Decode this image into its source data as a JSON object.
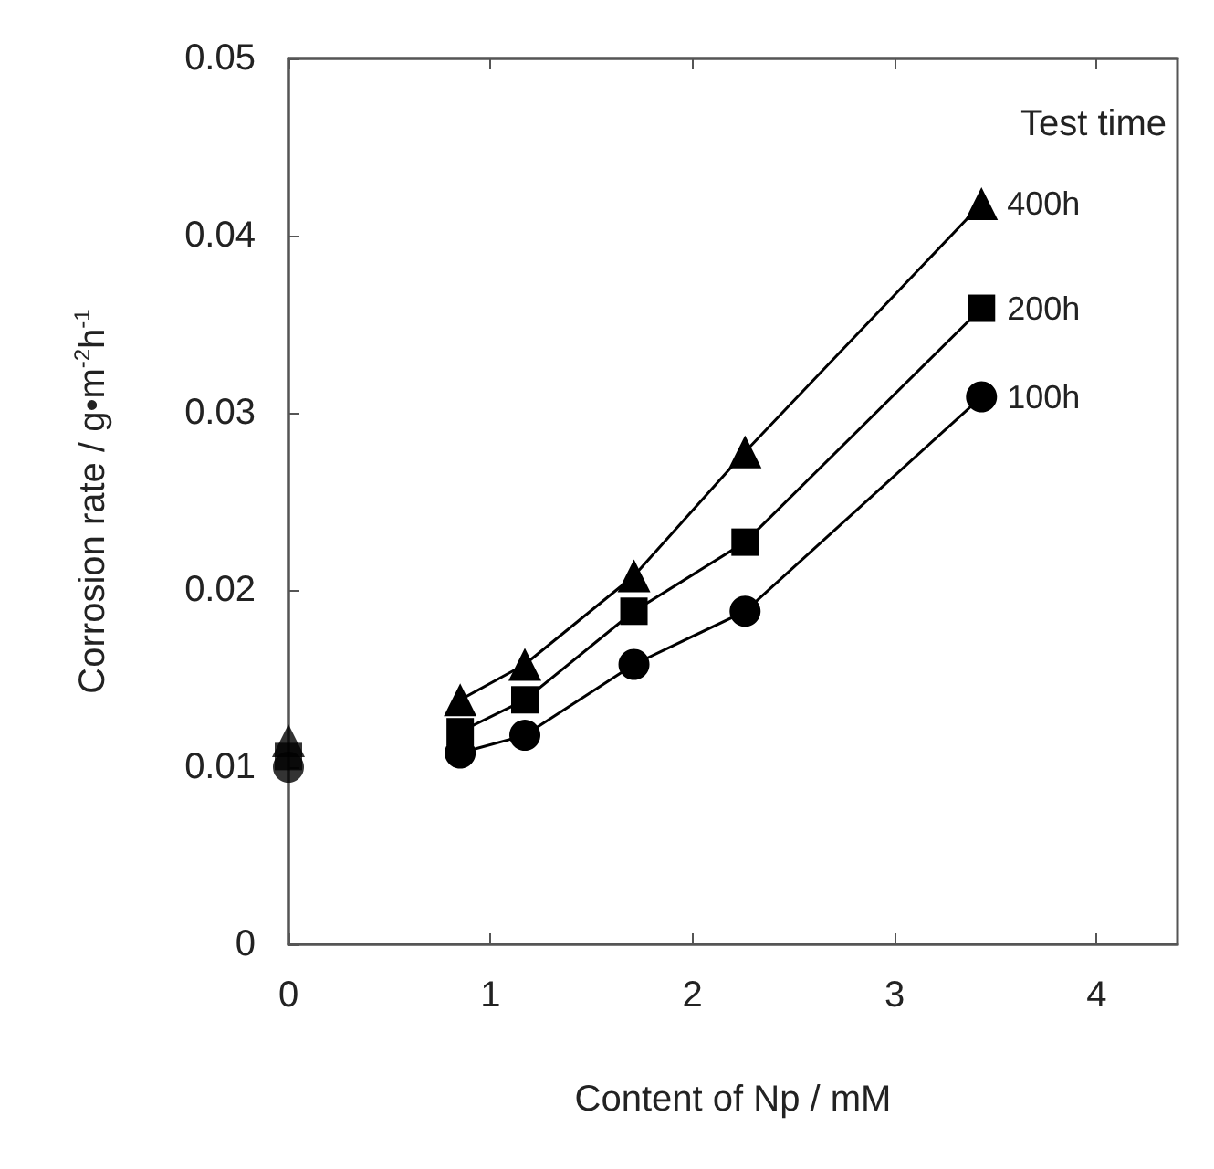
{
  "chart_data": {
    "type": "line",
    "xlabel": "Content of Np / mM",
    "ylabel": "Corrosion rate / g•m$^{-2}$h$^{-1}$",
    "legend_title": "Test time",
    "xlim": [
      0,
      4.4
    ],
    "xticks": [
      0,
      1,
      2,
      3,
      4
    ],
    "ylim": [
      0,
      0.05
    ],
    "yticks": [
      0,
      0.01,
      0.02,
      0.03,
      0.04,
      0.05
    ],
    "grid": false,
    "legend": false,
    "line_style": "solid",
    "series": [
      {
        "name": "400h",
        "color": "#000000",
        "marker": "triangle",
        "x": [
          0.85,
          1.17,
          1.71,
          2.26,
          3.43
        ],
        "values": [
          0.0138,
          0.0158,
          0.0208,
          0.0278,
          0.0418
        ]
      },
      {
        "name": "200h",
        "color": "#000000",
        "marker": "square",
        "x": [
          0.85,
          1.17,
          1.71,
          2.26,
          3.43
        ],
        "values": [
          0.012,
          0.0138,
          0.0188,
          0.0227,
          0.0359
        ]
      },
      {
        "name": "100h",
        "color": "#000000",
        "marker": "circle",
        "x": [
          0.85,
          1.17,
          1.71,
          2.26,
          3.43
        ],
        "values": [
          0.0108,
          0.0118,
          0.0158,
          0.0188,
          0.0309
        ]
      },
      {
        "type": "scatter",
        "color": "#000000",
        "marker": "circle",
        "x": [
          0
        ],
        "values": [
          0.01
        ]
      },
      {
        "type": "scatter",
        "color": "#000000",
        "marker": "square",
        "x": [
          0
        ],
        "values": [
          0.0106
        ]
      },
      {
        "type": "scatter",
        "color": "#000000",
        "marker": "triangle",
        "x": [
          0
        ],
        "values": [
          0.0115
        ]
      }
    ]
  }
}
